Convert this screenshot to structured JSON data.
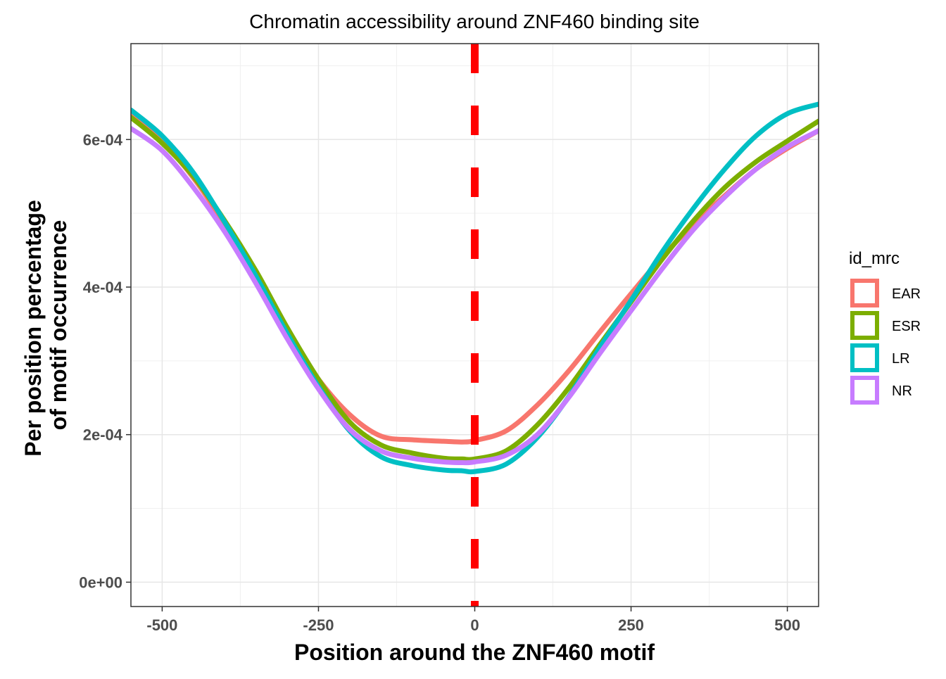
{
  "chart_data": {
    "type": "line",
    "title": "Chromatin accessibility around ZNF460 binding site",
    "xlabel": "Position around the ZNF460  motif",
    "ylabel_lines": [
      "Per position percentage",
      "of motif occurrence"
    ],
    "xlim": [
      -550,
      550
    ],
    "ylim": [
      -3.3e-05,
      0.00073
    ],
    "x_ticks": [
      -500,
      -250,
      0,
      250,
      500
    ],
    "x_tick_labels": [
      "-500",
      "-250",
      "0",
      "250",
      "500"
    ],
    "y_ticks": [
      0,
      0.0002,
      0.0004,
      0.0006
    ],
    "y_tick_labels": [
      "0e+00",
      "2e-04",
      "4e-04",
      "6e-04"
    ],
    "grid": true,
    "legend_title": "id_mrc",
    "legend_position": "right",
    "reference_line": {
      "x": 0,
      "color": "#ff0000",
      "style": "dashed"
    },
    "x": [
      -550,
      -500,
      -450,
      -400,
      -350,
      -300,
      -250,
      -200,
      -150,
      -100,
      -50,
      -20,
      0,
      50,
      100,
      150,
      200,
      250,
      300,
      350,
      400,
      450,
      500,
      550
    ],
    "series": [
      {
        "name": "EAR",
        "color": "#F8766D",
        "values": [
          0.000632,
          0.000597,
          0.000548,
          0.000485,
          0.000413,
          0.000338,
          0.000275,
          0.000227,
          0.000198,
          0.000193,
          0.000191,
          0.00019,
          0.000192,
          0.000205,
          0.00024,
          0.000286,
          0.000339,
          0.000391,
          0.000441,
          0.000485,
          0.000524,
          0.00056,
          0.000588,
          0.000612
        ]
      },
      {
        "name": "ESR",
        "color": "#7CAE00",
        "values": [
          0.00063,
          0.000595,
          0.00055,
          0.00049,
          0.000422,
          0.000345,
          0.000275,
          0.000217,
          0.000186,
          0.000175,
          0.000168,
          0.000167,
          0.000167,
          0.000178,
          0.000213,
          0.000263,
          0.000322,
          0.00038,
          0.000438,
          0.00049,
          0.000535,
          0.00057,
          0.000598,
          0.000625
        ]
      },
      {
        "name": "LR",
        "color": "#00BFC4",
        "values": [
          0.00064,
          0.000605,
          0.000555,
          0.000488,
          0.000415,
          0.000337,
          0.000265,
          0.000205,
          0.00017,
          0.000158,
          0.000152,
          0.000151,
          0.00015,
          0.00016,
          0.000196,
          0.000251,
          0.000318,
          0.000382,
          0.000448,
          0.000507,
          0.00056,
          0.000605,
          0.000635,
          0.000648
        ]
      },
      {
        "name": "NR",
        "color": "#C77CFF",
        "values": [
          0.000615,
          0.000585,
          0.000535,
          0.000475,
          0.000405,
          0.00033,
          0.000262,
          0.000207,
          0.000178,
          0.000168,
          0.000163,
          0.000162,
          0.000163,
          0.000172,
          0.0002,
          0.00025,
          0.00031,
          0.000368,
          0.000425,
          0.000478,
          0.000522,
          0.00056,
          0.00059,
          0.000612
        ]
      }
    ]
  }
}
